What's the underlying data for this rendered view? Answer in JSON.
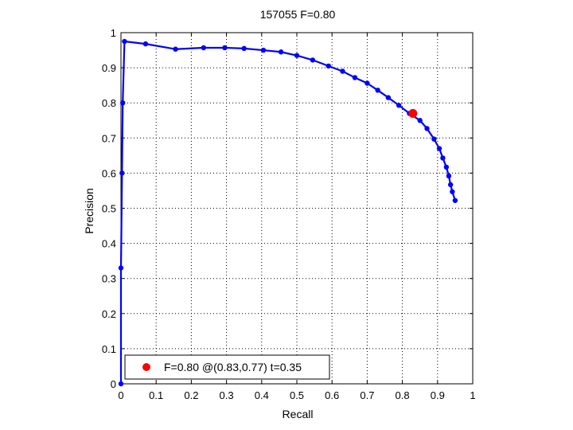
{
  "chart_data": {
    "type": "line",
    "title": "157055 F=0.80",
    "xlabel": "Recall",
    "ylabel": "Precision",
    "xlim": [
      0,
      1
    ],
    "ylim": [
      0,
      1
    ],
    "grid": true,
    "x_ticks": [
      "0",
      "0.1",
      "0.2",
      "0.3",
      "0.4",
      "0.5",
      "0.6",
      "0.7",
      "0.8",
      "0.9",
      "1"
    ],
    "y_ticks": [
      "0",
      "0.1",
      "0.2",
      "0.3",
      "0.4",
      "0.5",
      "0.6",
      "0.7",
      "0.8",
      "0.9",
      "1"
    ],
    "series": [
      {
        "color": "#0000ff",
        "points": [
          [
            0.0,
            0.0
          ],
          [
            0.0,
            0.33
          ],
          [
            0.003,
            0.6
          ],
          [
            0.005,
            0.8
          ],
          [
            0.01,
            0.975
          ],
          [
            0.07,
            0.968
          ],
          [
            0.155,
            0.953
          ],
          [
            0.235,
            0.957
          ],
          [
            0.295,
            0.957
          ],
          [
            0.35,
            0.955
          ],
          [
            0.405,
            0.95
          ],
          [
            0.455,
            0.945
          ],
          [
            0.5,
            0.935
          ],
          [
            0.545,
            0.922
          ],
          [
            0.59,
            0.905
          ],
          [
            0.63,
            0.89
          ],
          [
            0.665,
            0.872
          ],
          [
            0.7,
            0.856
          ],
          [
            0.73,
            0.836
          ],
          [
            0.76,
            0.815
          ],
          [
            0.79,
            0.793
          ],
          [
            0.82,
            0.77
          ],
          [
            0.85,
            0.75
          ],
          [
            0.87,
            0.727
          ],
          [
            0.89,
            0.697
          ],
          [
            0.905,
            0.67
          ],
          [
            0.915,
            0.643
          ],
          [
            0.925,
            0.617
          ],
          [
            0.932,
            0.592
          ],
          [
            0.937,
            0.567
          ],
          [
            0.942,
            0.547
          ],
          [
            0.95,
            0.522
          ]
        ]
      }
    ],
    "highlight": {
      "x": 0.83,
      "y": 0.77,
      "color": "#ff0000"
    },
    "legend": {
      "label": "F=0.80 @(0.83,0.77) t=0.35",
      "position": "bottom-left"
    }
  }
}
